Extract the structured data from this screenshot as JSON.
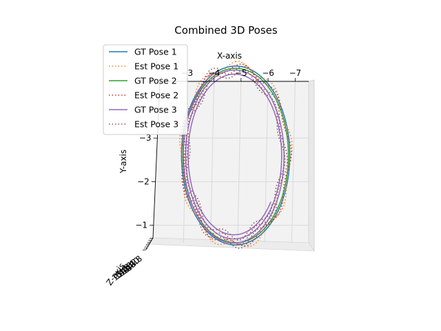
{
  "chart_data": {
    "type": "line",
    "title": "Combined 3D Poses",
    "xlabel": "X-axis",
    "ylabel": "Y-axis",
    "zlabel": "Z-axis",
    "view": "top-down 3D projection (Y axis inverted)",
    "xlim": [
      -2,
      -7.5
    ],
    "ylim": [
      -0.6,
      -4.3
    ],
    "xticks": [
      -3,
      -4,
      -5,
      -6,
      -7
    ],
    "yticks": [
      -1,
      -2,
      -3
    ],
    "zticks": [
      "13.8",
      "14.0",
      "14.2",
      "14.4",
      "14.6",
      "14.8",
      "15.0"
    ],
    "grid": true,
    "legend_position": "upper-left",
    "series": [
      {
        "name": "GT Pose 1",
        "style": "solid",
        "color": "#1f77b4",
        "center": [
          -4.8,
          -2.6
        ],
        "rx": 2.0,
        "ry": 2.05,
        "turns": 1.0,
        "t_start": 0.5,
        "dr": 0.0,
        "phase": 0.0,
        "noise": 0.0
      },
      {
        "name": "Est Pose 1",
        "style": "dotted",
        "color": "#ff7f0e",
        "center": [
          -4.8,
          -2.6
        ],
        "rx": 2.02,
        "ry": 2.08,
        "turns": 1.0,
        "t_start": 0.5,
        "dr": 0.0,
        "phase": 0.4,
        "noise": 0.04
      },
      {
        "name": "GT Pose 2",
        "style": "solid",
        "color": "#2ca02c",
        "center": [
          -4.8,
          -2.6
        ],
        "rx": 1.95,
        "ry": 2.0,
        "turns": 1.0,
        "t_start": 0.5,
        "dr": 0.0,
        "phase": 0.0,
        "noise": 0.0
      },
      {
        "name": "Est Pose 2",
        "style": "dotted",
        "color": "#d62728",
        "center": [
          -4.8,
          -2.6
        ],
        "rx": 1.98,
        "ry": 2.03,
        "turns": 1.0,
        "t_start": 0.5,
        "dr": 0.0,
        "phase": 1.2,
        "noise": 0.04
      },
      {
        "name": "GT Pose 3",
        "style": "solid",
        "color": "#9467bd",
        "center": [
          -4.75,
          -2.6
        ],
        "rx": 1.9,
        "ry": 2.05,
        "turns": 2.6,
        "t_start": 0.6,
        "dr": -0.12,
        "phase": 0.0,
        "noise": 0.0
      },
      {
        "name": "Est Pose 3",
        "style": "dotted",
        "color": "#8c564b",
        "center": [
          -4.75,
          -2.6
        ],
        "rx": 1.93,
        "ry": 2.08,
        "turns": 2.6,
        "t_start": 0.6,
        "dr": -0.12,
        "phase": 2.1,
        "noise": 0.05
      }
    ]
  }
}
